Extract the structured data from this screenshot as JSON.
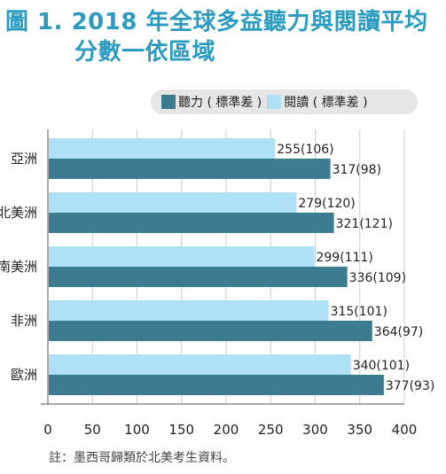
{
  "title": {
    "line1": "圖 1. 2018 年全球多益聽力與閱讀平均",
    "line2": "分數一依區域"
  },
  "legend": {
    "listening": "聽力 ( 標準差 )",
    "reading": "閱讀 ( 標準差 )"
  },
  "note": "註：墨西哥歸類於北美考生資料。",
  "colors": {
    "listening": "#3b7c91",
    "reading": "#aee0f6",
    "title": "#2b9bbf"
  },
  "chart_data": {
    "type": "bar",
    "orientation": "horizontal",
    "categories": [
      "亞洲",
      "北美洲",
      "南美洲",
      "非洲",
      "歐洲"
    ],
    "series": [
      {
        "name": "閱讀 ( 標準差 )",
        "values": [
          255,
          279,
          299,
          315,
          340
        ],
        "labels": [
          "255(106)",
          "279(120)",
          "299(111)",
          "315(101)",
          "340(101)"
        ]
      },
      {
        "name": "聽力 ( 標準差 )",
        "values": [
          317,
          321,
          336,
          364,
          377
        ],
        "labels": [
          "317(98)",
          "321(121)",
          "336(109)",
          "364(97)",
          "377(93)"
        ]
      }
    ],
    "xlim": [
      0,
      400
    ],
    "xticks": [
      0,
      50,
      100,
      150,
      200,
      250,
      300,
      350,
      400
    ],
    "grid": true
  }
}
